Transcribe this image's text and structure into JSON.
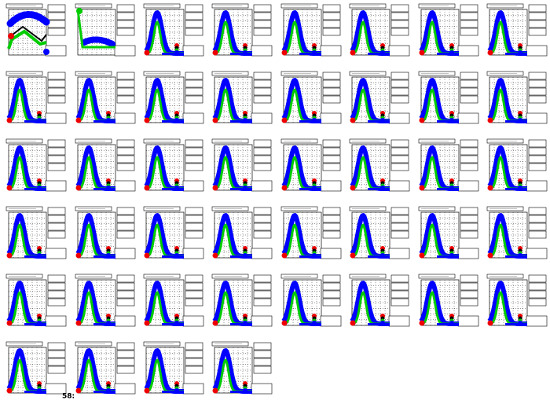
{
  "footer_label": "58:"
}
